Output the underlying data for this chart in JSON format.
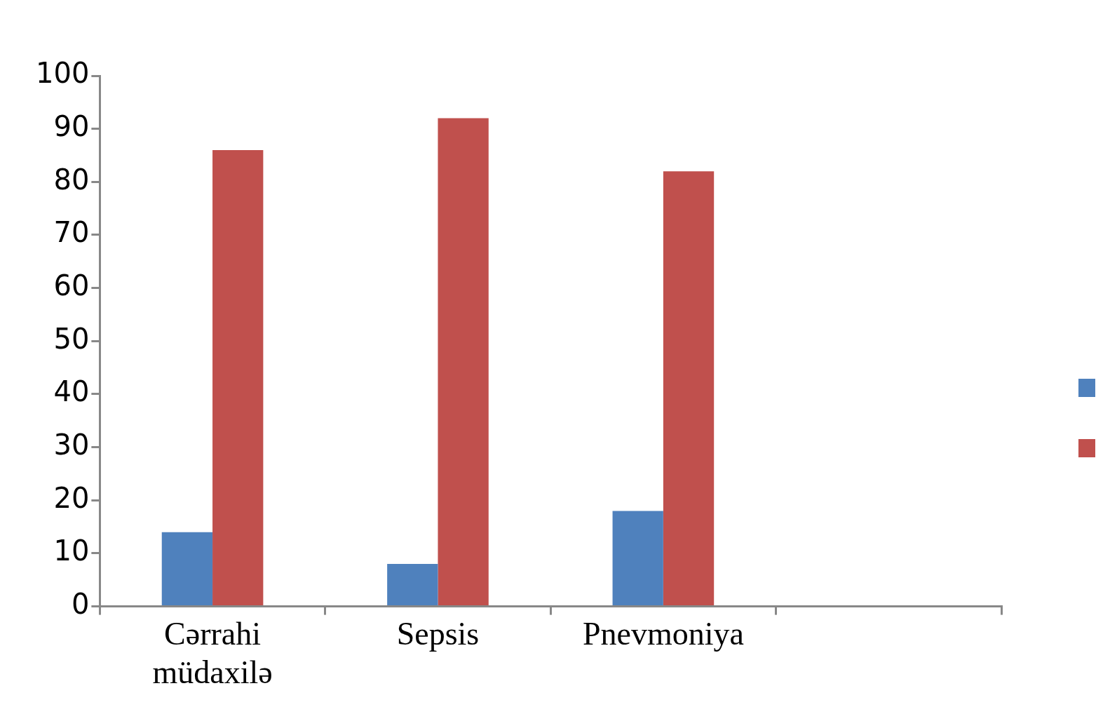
{
  "chart_data": {
    "type": "bar",
    "categories": [
      "Cərrahi müdaxilə",
      "Sepsis",
      "Pnevmoniya",
      null
    ],
    "series": [
      {
        "color": "#4f81bd",
        "values": [
          14,
          8,
          18,
          null
        ]
      },
      {
        "color": "#c0504d",
        "values": [
          86,
          92,
          82,
          null
        ]
      }
    ],
    "ylim": [
      0,
      100
    ],
    "yticks": [
      0,
      10,
      20,
      30,
      40,
      50,
      60,
      70,
      80,
      90,
      100
    ]
  }
}
